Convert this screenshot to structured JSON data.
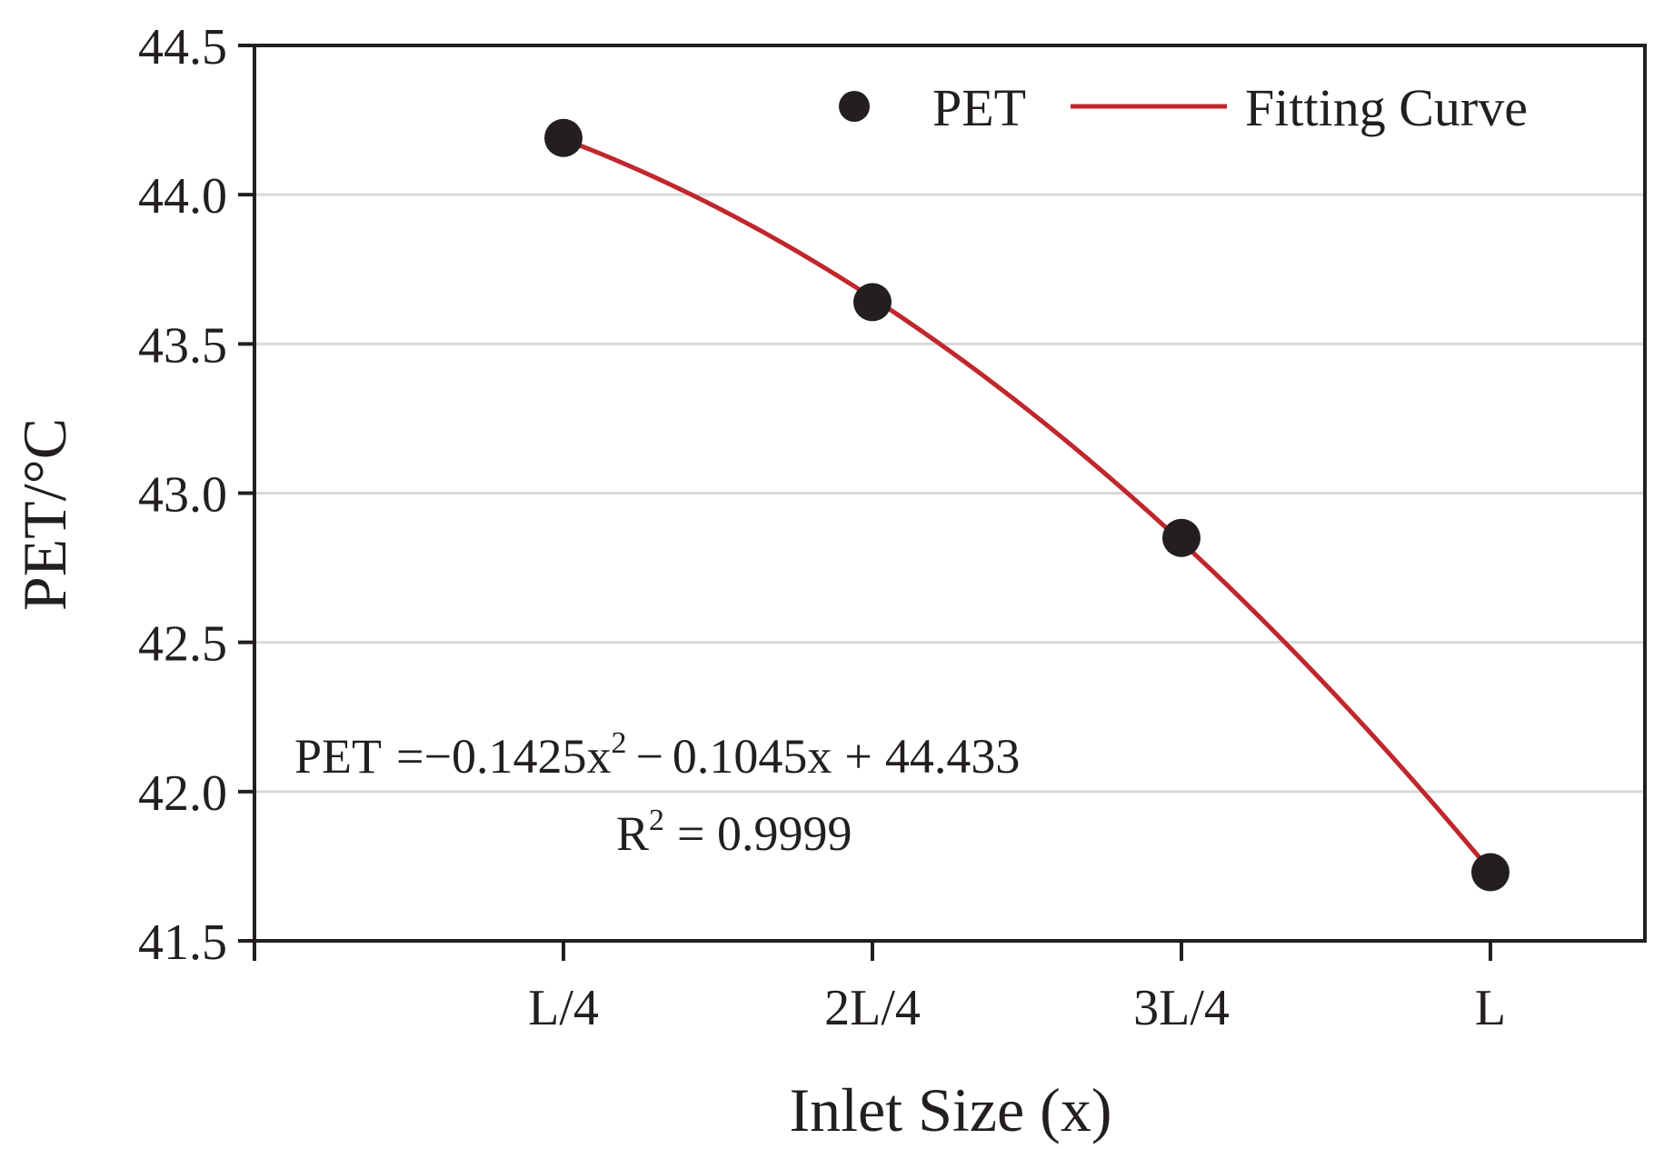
{
  "chart_data": {
    "type": "scatter",
    "xlabel": "Inlet Size (x)",
    "ylabel": "PET/°C",
    "ylim": [
      41.5,
      44.5
    ],
    "yticks": [
      "41.5",
      "42.0",
      "42.5",
      "43.0",
      "43.5",
      "44.0",
      "44.5"
    ],
    "categories": [
      "L/4",
      "2L/4",
      "3L/4",
      "L"
    ],
    "x": [
      1,
      2,
      3,
      4
    ],
    "xlim": [
      0,
      4.5
    ],
    "grid": "horizontal",
    "legend_position": "top-right",
    "series": [
      {
        "name": "PET",
        "kind": "scatter",
        "color": "#231f20",
        "values": [
          44.19,
          43.64,
          42.85,
          41.73
        ]
      },
      {
        "name": "Fitting Curve",
        "kind": "line",
        "color": "#c0272d",
        "coefficients": {
          "a": -0.1425,
          "b": -0.1045,
          "c": 44.433
        },
        "x_range": [
          1,
          4
        ]
      }
    ],
    "annotations": {
      "equation": {
        "lhs": "PET",
        "eq": "=",
        "t1": "−0.1425x",
        "exp": "2",
        "op1": "−",
        "t2": "0.1045x",
        "op2": "+",
        "t3": "44.433"
      },
      "r2": {
        "r": "R",
        "exp": "2",
        "rest": "= 0.9999"
      }
    }
  }
}
